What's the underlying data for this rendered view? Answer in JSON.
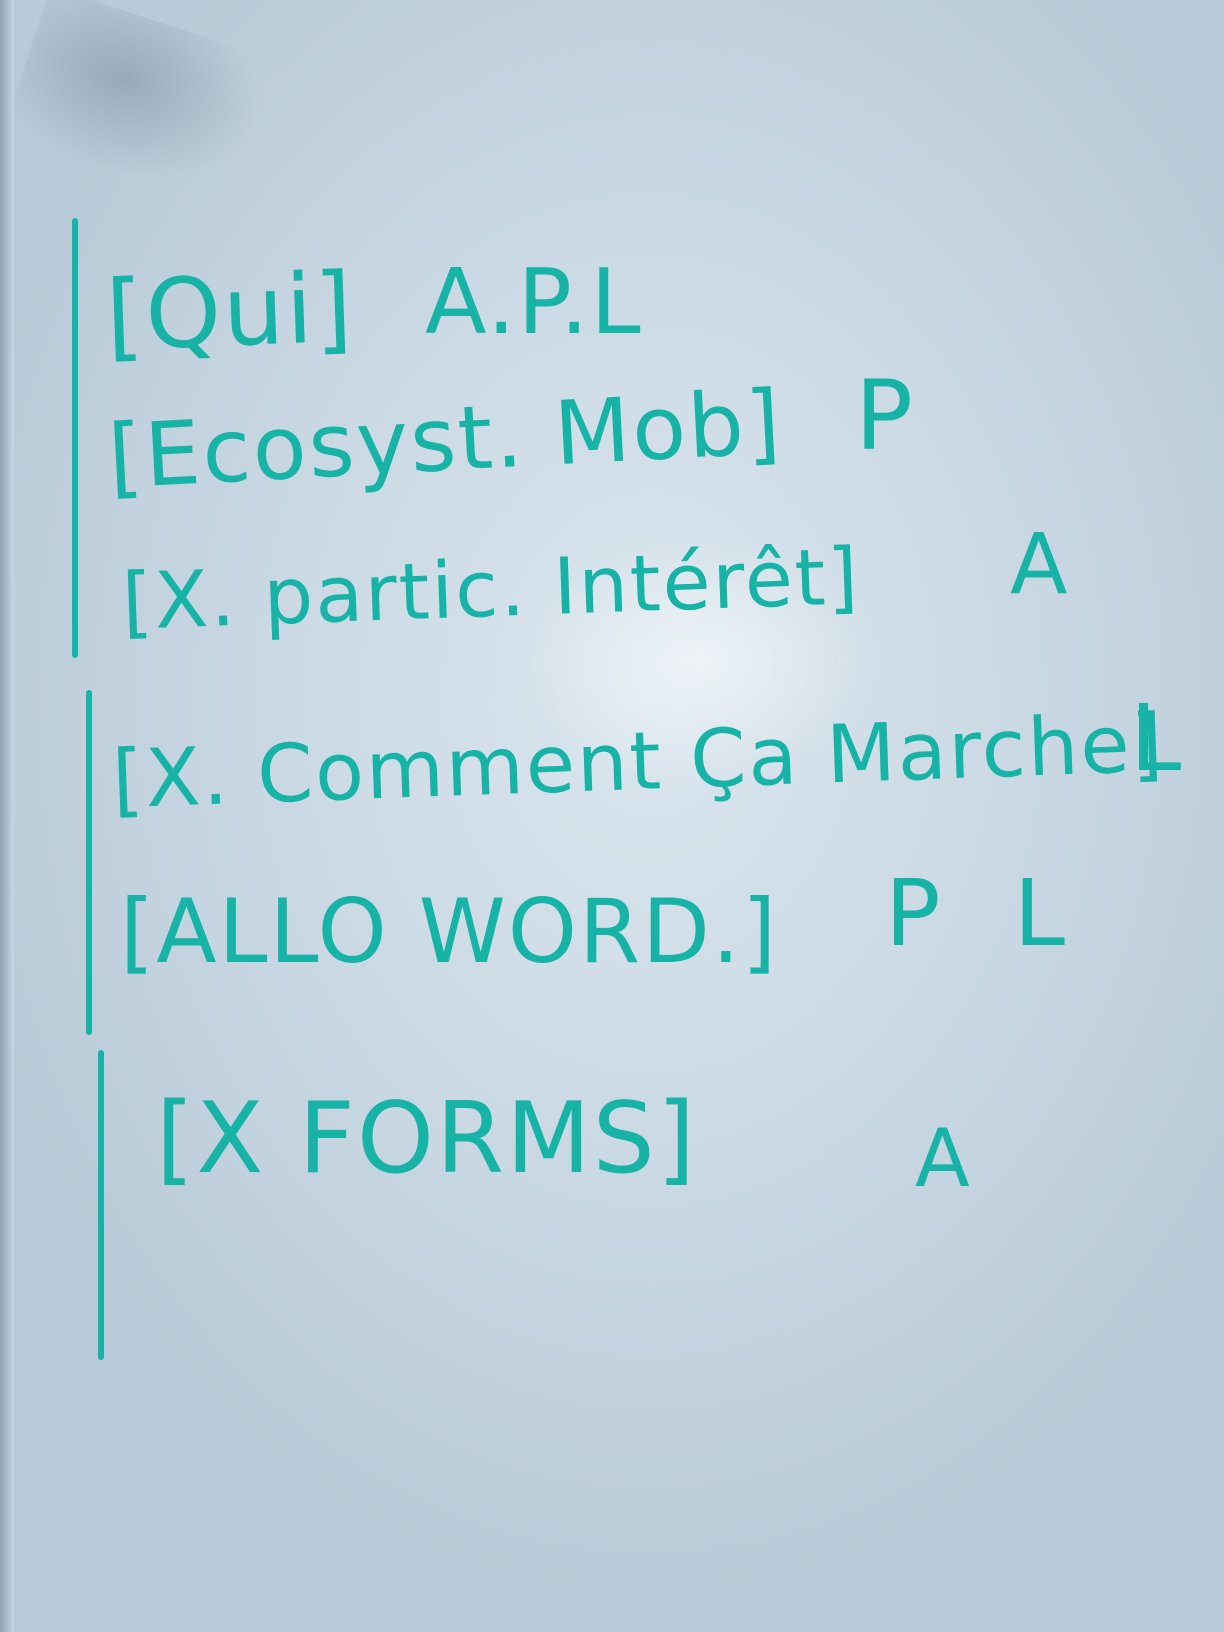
{
  "lines": [
    {
      "text": "[Qui]",
      "tag": "A.P.L"
    },
    {
      "text": "[Ecosyst. Mob]",
      "tag": "P"
    },
    {
      "text": "[X. partic. Intérêt]",
      "tag": "A"
    },
    {
      "text": "[X. Comment Ça Marche]",
      "tag": "L"
    },
    {
      "text": "[ALLO WORD.]",
      "tag": "P L"
    },
    {
      "text": "[X FORMS]",
      "tag": "A"
    }
  ],
  "colors": {
    "marker": "#16b3a6",
    "board": "#d3e0ea"
  }
}
